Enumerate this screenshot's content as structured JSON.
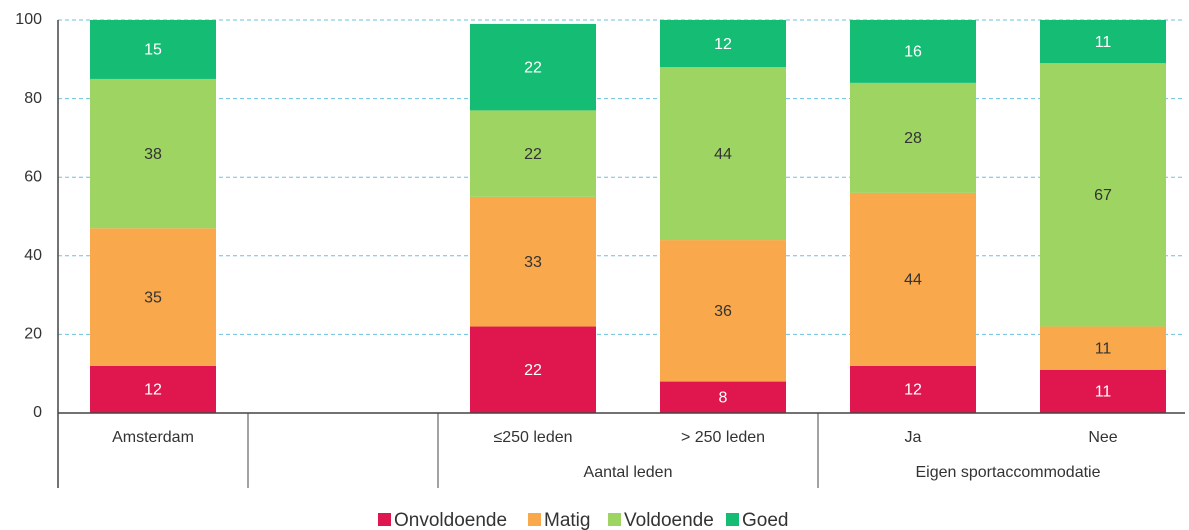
{
  "chart_data": {
    "type": "stacked_bar",
    "categories": [
      "Amsterdam",
      null,
      "≤250 leden",
      "> 250 leden",
      "Ja",
      "Nee"
    ],
    "groups": [
      "Aantal leden",
      "Eigen sportaccommodatie"
    ],
    "series": [
      {
        "name": "Onvoldoende",
        "color": "#e0174f",
        "values": [
          12,
          null,
          22,
          8,
          12,
          11
        ]
      },
      {
        "name": "Matig",
        "color": "#f9a94b",
        "values": [
          35,
          null,
          33,
          36,
          44,
          11
        ]
      },
      {
        "name": "Voldoende",
        "color": "#9ed462",
        "values": [
          38,
          null,
          22,
          44,
          28,
          67
        ]
      },
      {
        "name": "Goed",
        "color": "#15bc74",
        "values": [
          15,
          null,
          22,
          12,
          16,
          11
        ]
      }
    ],
    "ylim": [
      0,
      100
    ],
    "yticks": [
      0,
      20,
      40,
      60,
      80,
      100
    ],
    "grid": true,
    "legend": "bottom"
  }
}
